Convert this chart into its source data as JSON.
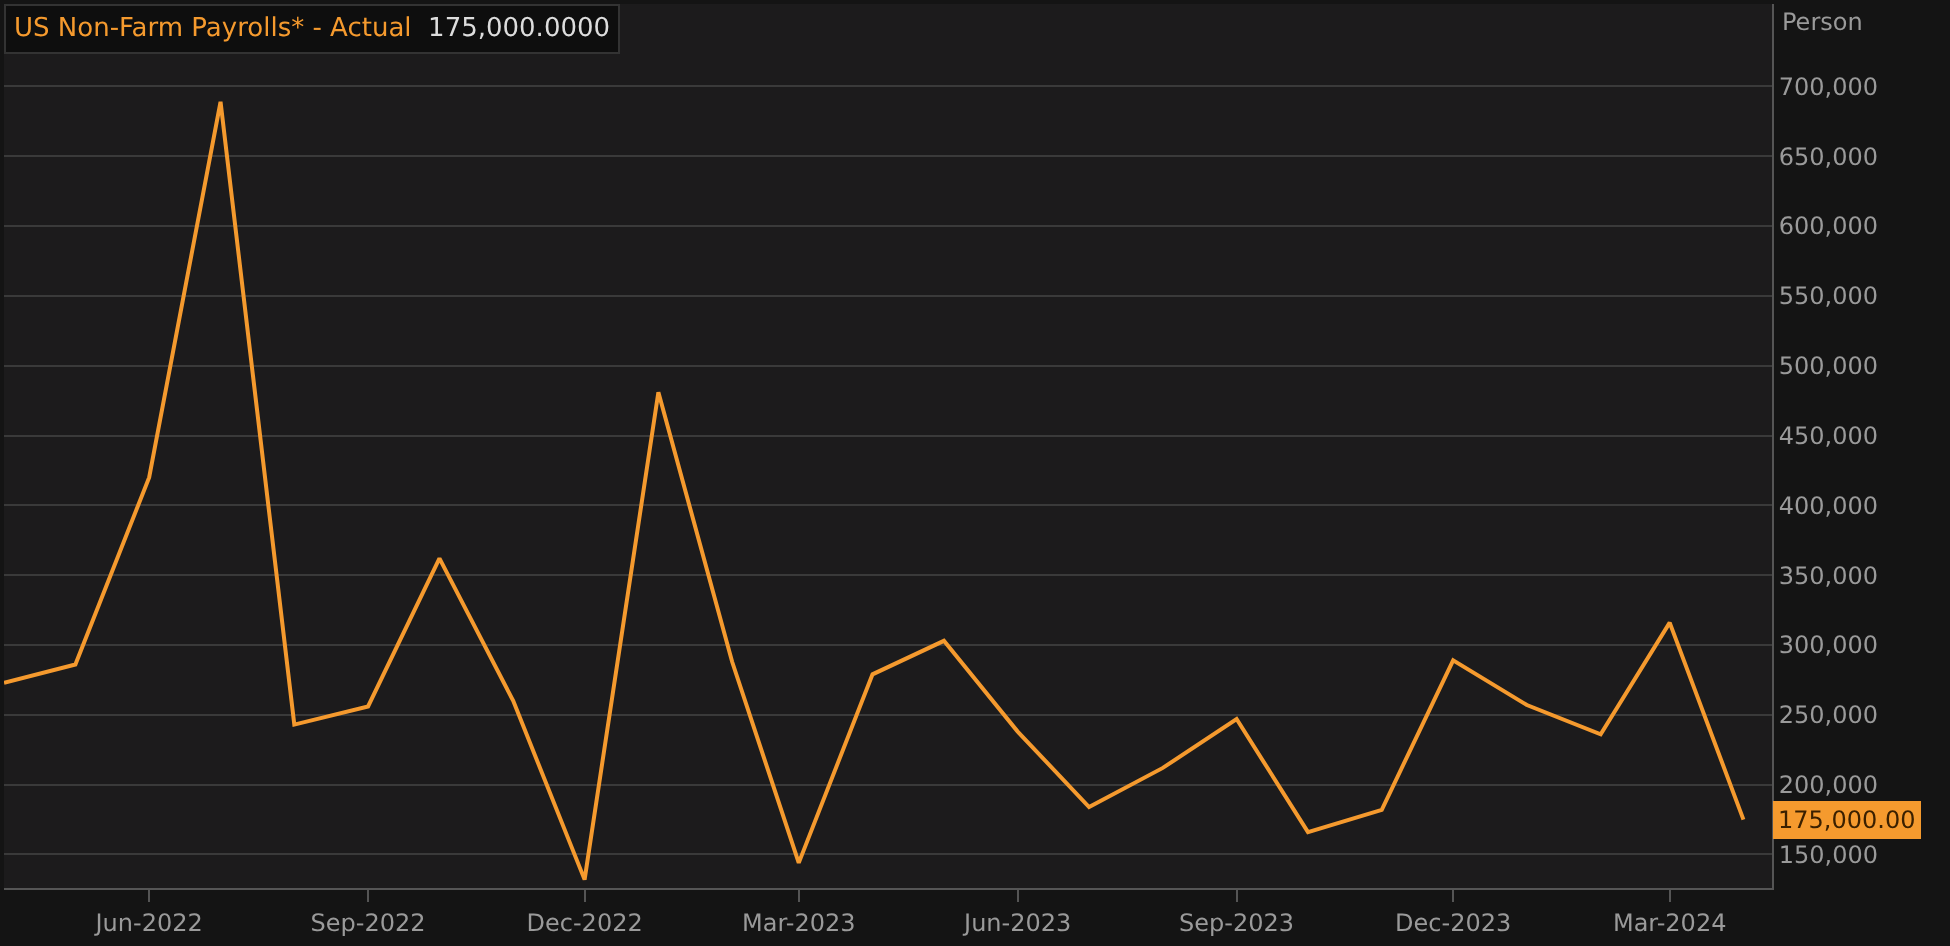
{
  "chart_data": {
    "type": "line",
    "ylabel": "Person",
    "x": [
      "2022-04",
      "2022-05",
      "2022-06",
      "2022-07",
      "2022-08",
      "2022-09",
      "2022-10",
      "2022-11",
      "2022-12",
      "2023-01",
      "2023-02",
      "2023-03",
      "2023-04",
      "2023-05",
      "2023-06",
      "2023-07",
      "2023-08",
      "2023-09",
      "2023-10",
      "2023-11",
      "2023-12",
      "2024-01",
      "2024-02",
      "2024-03",
      "2024-04"
    ],
    "series": [
      {
        "name": "US Non-Farm Payrolls* - Actual",
        "color": "#f59a2e",
        "values": [
          273000,
          286000,
          420000,
          689000,
          243000,
          256000,
          362000,
          260000,
          132000,
          481000,
          288000,
          144000,
          279000,
          303000,
          238000,
          184000,
          212000,
          247000,
          166000,
          182000,
          289000,
          257000,
          236000,
          316000,
          175000
        ]
      }
    ],
    "xlim": [
      "2022-04",
      "2024-04-13"
    ],
    "xticks": [
      {
        "value": "2022-06",
        "label": "Jun-2022"
      },
      {
        "value": "2022-09",
        "label": "Sep-2022"
      },
      {
        "value": "2022-12",
        "label": "Dec-2022"
      },
      {
        "value": "2023-03",
        "label": "Mar-2023"
      },
      {
        "value": "2023-06",
        "label": "Jun-2023"
      },
      {
        "value": "2023-09",
        "label": "Sep-2023"
      },
      {
        "value": "2023-12",
        "label": "Dec-2023"
      },
      {
        "value": "2024-03",
        "label": "Mar-2024"
      }
    ],
    "ylim": [
      126000,
      759000
    ],
    "yticks": [
      {
        "value": 150000,
        "label": "150,000"
      },
      {
        "value": 200000,
        "label": "200,000"
      },
      {
        "value": 250000,
        "label": "250,000"
      },
      {
        "value": 300000,
        "label": "300,000"
      },
      {
        "value": 350000,
        "label": "350,000"
      },
      {
        "value": 400000,
        "label": "400,000"
      },
      {
        "value": 450000,
        "label": "450,000"
      },
      {
        "value": 500000,
        "label": "500,000"
      },
      {
        "value": 550000,
        "label": "550,000"
      },
      {
        "value": 600000,
        "label": "600,000"
      },
      {
        "value": 650000,
        "label": "650,000"
      },
      {
        "value": 700000,
        "label": "700,000"
      }
    ],
    "annotations": [
      "175,000.0000",
      "175,000.00"
    ],
    "grid": "y",
    "legend": "top left",
    "marker": "none",
    "line_style": "solid"
  }
}
